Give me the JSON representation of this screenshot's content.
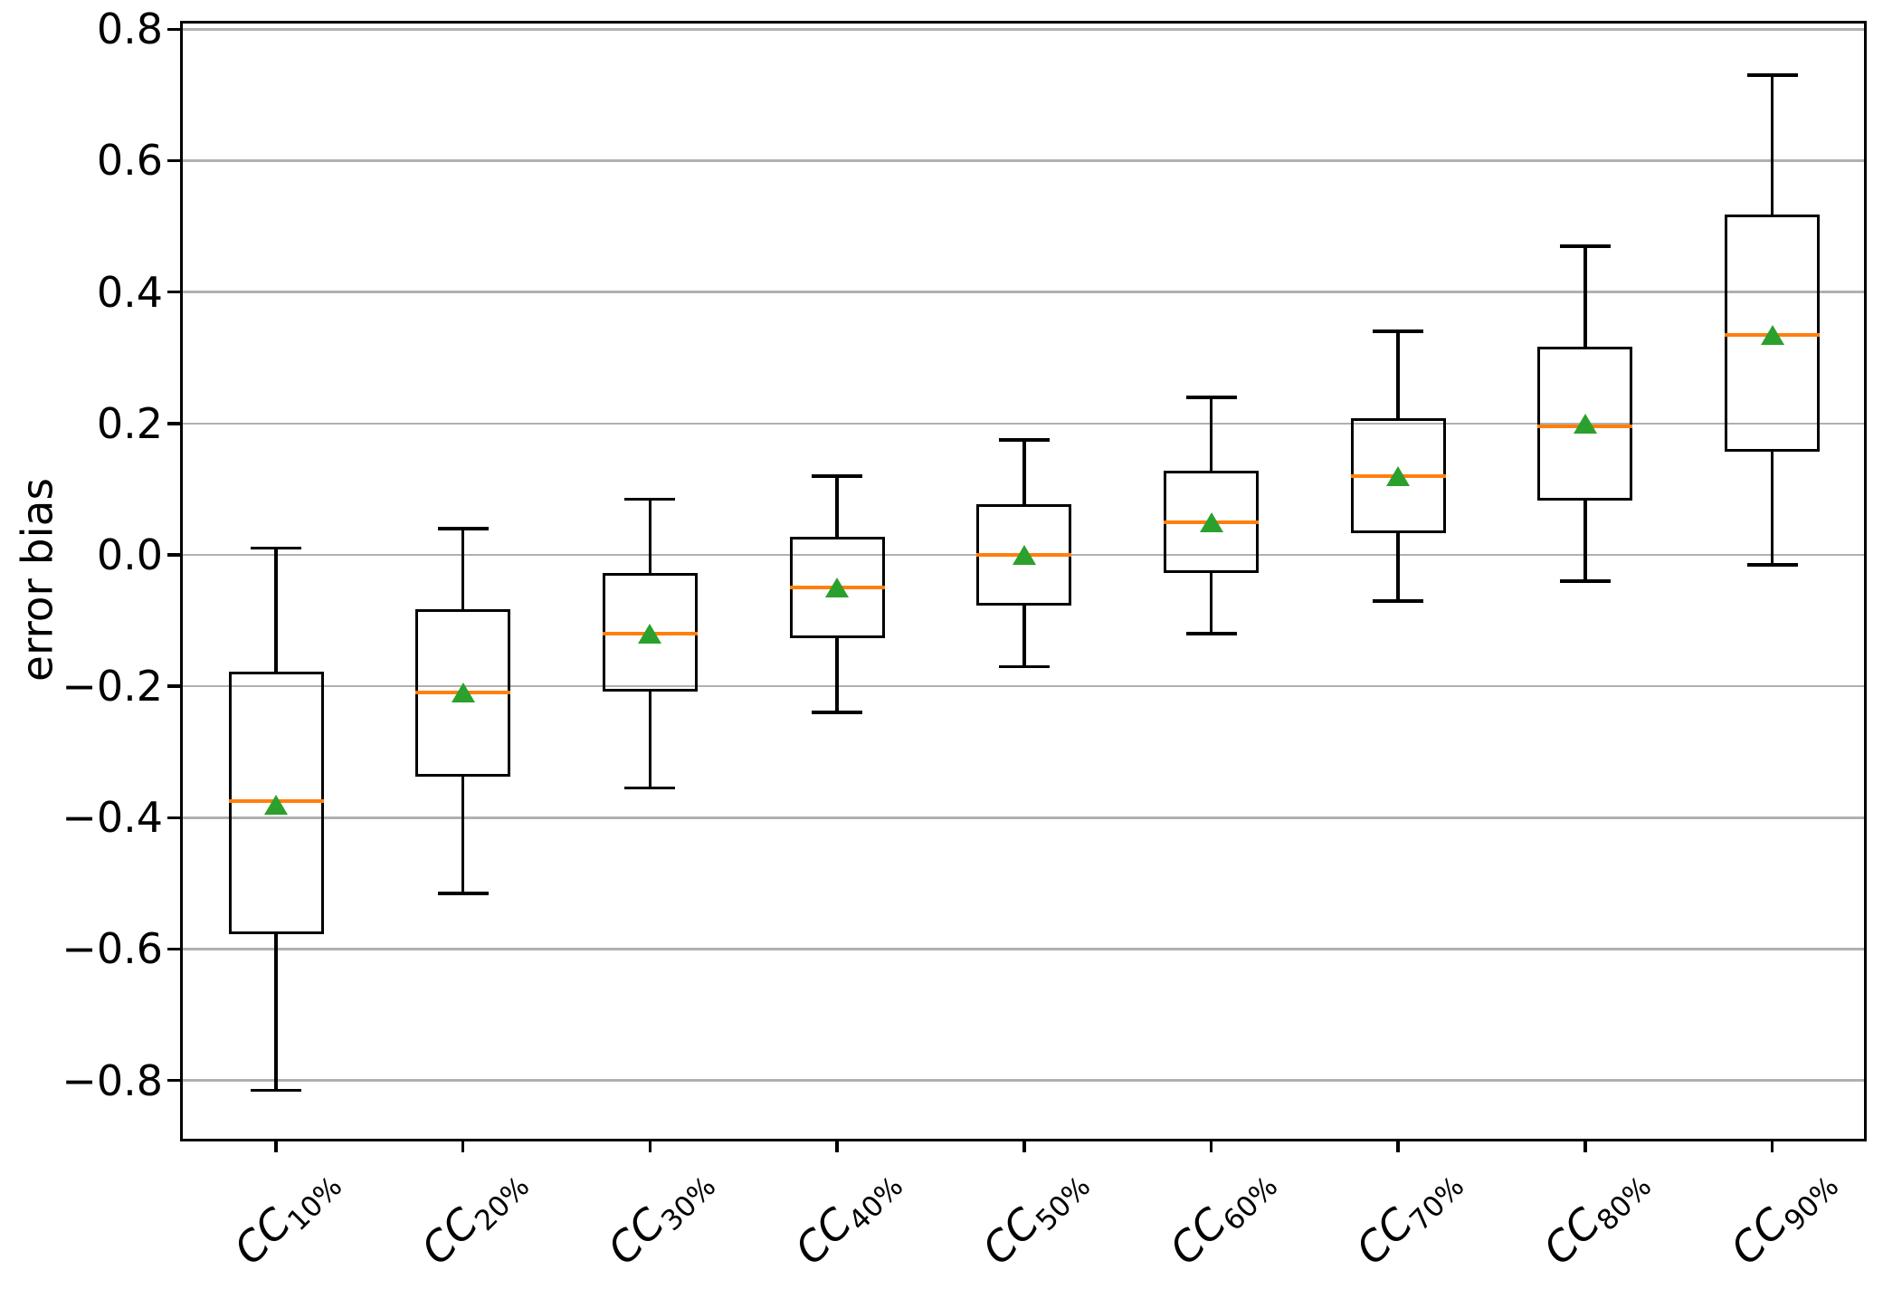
{
  "chart_data": {
    "type": "boxplot",
    "title": "",
    "xlabel": "",
    "ylabel": "error bias",
    "ylim": [
      -0.89,
      0.81
    ],
    "grid": "horizontal",
    "legend": "none",
    "yticks": [
      {
        "value": 0.8,
        "label": "0.8"
      },
      {
        "value": 0.6,
        "label": "0.6"
      },
      {
        "value": 0.4,
        "label": "0.4"
      },
      {
        "value": 0.2,
        "label": "0.2"
      },
      {
        "value": 0.0,
        "label": "0.0"
      },
      {
        "value": -0.2,
        "label": "−0.2"
      },
      {
        "value": -0.4,
        "label": "−0.4"
      },
      {
        "value": -0.6,
        "label": "−0.6"
      },
      {
        "value": -0.8,
        "label": "−0.8"
      }
    ],
    "categories": [
      {
        "base": "CC",
        "sub": "10%"
      },
      {
        "base": "CC",
        "sub": "20%"
      },
      {
        "base": "CC",
        "sub": "30%"
      },
      {
        "base": "CC",
        "sub": "40%"
      },
      {
        "base": "CC",
        "sub": "50%"
      },
      {
        "base": "CC",
        "sub": "60%"
      },
      {
        "base": "CC",
        "sub": "70%"
      },
      {
        "base": "CC",
        "sub": "80%"
      },
      {
        "base": "CC",
        "sub": "90%"
      }
    ],
    "boxes": [
      {
        "label": "CC10%",
        "whisker_low": -0.815,
        "q1": -0.575,
        "median": -0.375,
        "q3": -0.18,
        "whisker_high": 0.01,
        "mean": -0.38
      },
      {
        "label": "CC20%",
        "whisker_low": -0.515,
        "q1": -0.335,
        "median": -0.21,
        "q3": -0.085,
        "whisker_high": 0.04,
        "mean": -0.21
      },
      {
        "label": "CC30%",
        "whisker_low": -0.355,
        "q1": -0.205,
        "median": -0.12,
        "q3": -0.03,
        "whisker_high": 0.085,
        "mean": -0.12
      },
      {
        "label": "CC40%",
        "whisker_low": -0.24,
        "q1": -0.125,
        "median": -0.05,
        "q3": 0.025,
        "whisker_high": 0.12,
        "mean": -0.05
      },
      {
        "label": "CC50%",
        "whisker_low": -0.17,
        "q1": -0.075,
        "median": 0.0,
        "q3": 0.075,
        "whisker_high": 0.175,
        "mean": 0.0
      },
      {
        "label": "CC60%",
        "whisker_low": -0.12,
        "q1": -0.025,
        "median": 0.05,
        "q3": 0.125,
        "whisker_high": 0.24,
        "mean": 0.05
      },
      {
        "label": "CC70%",
        "whisker_low": -0.07,
        "q1": 0.035,
        "median": 0.12,
        "q3": 0.205,
        "whisker_high": 0.34,
        "mean": 0.12
      },
      {
        "label": "CC80%",
        "whisker_low": -0.04,
        "q1": 0.085,
        "median": 0.195,
        "q3": 0.315,
        "whisker_high": 0.47,
        "mean": 0.2
      },
      {
        "label": "CC90%",
        "whisker_low": -0.015,
        "q1": 0.16,
        "median": 0.335,
        "q3": 0.515,
        "whisker_high": 0.73,
        "mean": 0.335
      }
    ],
    "colors": {
      "box_line": "#000000",
      "median": "#ff7f0e",
      "mean_marker": "#2ca02c",
      "grid": "#b0b0b0",
      "background": "#ffffff"
    }
  }
}
